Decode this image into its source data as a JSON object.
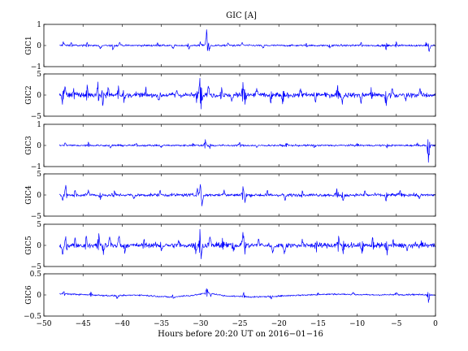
{
  "chart_data": {
    "type": "line",
    "title": "GIC [A]",
    "xlabel": "Hours before  20:20 UT on 2016−01−16",
    "xlim": [
      -50,
      0
    ],
    "x_ticks": [
      -50,
      -45,
      -40,
      -35,
      -30,
      -25,
      -20,
      -15,
      -10,
      -5,
      0
    ],
    "x_tick_labels": [
      "−50",
      "−45",
      "−40",
      "−35",
      "−30",
      "−25",
      "−20",
      "−15",
      "−10",
      "−5",
      "0"
    ],
    "data_x_range": [
      -48,
      0
    ],
    "grid": false,
    "color": "#0000ff",
    "panels": [
      {
        "ylabel": "GIC1",
        "ylim": [
          -1,
          1
        ],
        "y_ticks": [
          -1,
          0,
          1
        ],
        "y_tick_labels": [
          "−1",
          "0",
          "1"
        ],
        "baseline": 0,
        "noise": 0.03,
        "bursts": [
          {
            "x": -47.5,
            "y": 0.18
          },
          {
            "x": -46.5,
            "y": 0.14
          },
          {
            "x": -44.5,
            "y": 0.15
          },
          {
            "x": -42.8,
            "y": -0.15
          },
          {
            "x": -41.2,
            "y": -0.2
          },
          {
            "x": -40.3,
            "y": 0.15
          },
          {
            "x": -35.5,
            "y": 0.12
          },
          {
            "x": -33.5,
            "y": -0.15
          },
          {
            "x": -31.5,
            "y": -0.15
          },
          {
            "x": -30.0,
            "y": 0.18
          },
          {
            "x": -29.2,
            "y": 0.75
          },
          {
            "x": -28.9,
            "y": -0.25
          },
          {
            "x": -26.5,
            "y": 0.12
          },
          {
            "x": -24.7,
            "y": 0.14
          },
          {
            "x": -22.0,
            "y": -0.12
          },
          {
            "x": -16.5,
            "y": 0.1
          },
          {
            "x": -13.5,
            "y": -0.12
          },
          {
            "x": -9.5,
            "y": 0.15
          },
          {
            "x": -6.3,
            "y": -0.2
          },
          {
            "x": -5.0,
            "y": 0.18
          },
          {
            "x": -1.2,
            "y": 0.15
          },
          {
            "x": -0.8,
            "y": -0.28
          }
        ]
      },
      {
        "ylabel": "GIC2",
        "ylim": [
          -5,
          5
        ],
        "y_ticks": [
          -5,
          0,
          5
        ],
        "y_tick_labels": [
          "−5",
          "0",
          "5"
        ],
        "baseline": 0,
        "noise": 0.4,
        "bursts": [
          {
            "x": -47.6,
            "y": -2.2
          },
          {
            "x": -47.3,
            "y": 2.0
          },
          {
            "x": -46.2,
            "y": 1.6
          },
          {
            "x": -44.5,
            "y": 2.4
          },
          {
            "x": -43.1,
            "y": 3.1
          },
          {
            "x": -42.5,
            "y": -2.5
          },
          {
            "x": -41.8,
            "y": 1.8
          },
          {
            "x": -40.5,
            "y": 2.2
          },
          {
            "x": -39.8,
            "y": -1.8
          },
          {
            "x": -37.0,
            "y": 1.2
          },
          {
            "x": -35.3,
            "y": -1.2
          },
          {
            "x": -33.0,
            "y": 1.1
          },
          {
            "x": -30.5,
            "y": -1.8
          },
          {
            "x": -30.1,
            "y": 4.0
          },
          {
            "x": -29.9,
            "y": -3.3
          },
          {
            "x": -29.0,
            "y": 2.1
          },
          {
            "x": -27.3,
            "y": 1.8
          },
          {
            "x": -26.0,
            "y": -1.5
          },
          {
            "x": -24.6,
            "y": 3.0
          },
          {
            "x": -24.3,
            "y": -2.2
          },
          {
            "x": -22.8,
            "y": 1.6
          },
          {
            "x": -21.0,
            "y": -1.9
          },
          {
            "x": -19.5,
            "y": -2.1
          },
          {
            "x": -17.2,
            "y": 1.5
          },
          {
            "x": -15.3,
            "y": -1.7
          },
          {
            "x": -12.5,
            "y": 2.3
          },
          {
            "x": -11.9,
            "y": -2.2
          },
          {
            "x": -9.5,
            "y": -2.0
          },
          {
            "x": -8.2,
            "y": 1.8
          },
          {
            "x": -6.3,
            "y": -2.5
          },
          {
            "x": -5.5,
            "y": 1.5
          },
          {
            "x": -3.8,
            "y": -1.4
          },
          {
            "x": -2.0,
            "y": 1.2
          }
        ]
      },
      {
        "ylabel": "GIC3",
        "ylim": [
          -1,
          1
        ],
        "y_ticks": [
          -1,
          0,
          1
        ],
        "y_tick_labels": [
          "−1",
          "0",
          "1"
        ],
        "baseline": 0,
        "noise": 0.03,
        "bursts": [
          {
            "x": -47.3,
            "y": 0.12
          },
          {
            "x": -44.3,
            "y": 0.16
          },
          {
            "x": -41.5,
            "y": -0.12
          },
          {
            "x": -38.2,
            "y": 0.1
          },
          {
            "x": -35.0,
            "y": -0.1
          },
          {
            "x": -31.0,
            "y": 0.1
          },
          {
            "x": -29.4,
            "y": 0.28
          },
          {
            "x": -28.8,
            "y": -0.15
          },
          {
            "x": -25.0,
            "y": 0.14
          },
          {
            "x": -22.8,
            "y": -0.1
          },
          {
            "x": -19.0,
            "y": 0.1
          },
          {
            "x": -15.5,
            "y": -0.1
          },
          {
            "x": -10.0,
            "y": 0.1
          },
          {
            "x": -6.2,
            "y": -0.12
          },
          {
            "x": -2.3,
            "y": 0.12
          },
          {
            "x": -0.9,
            "y": -0.8
          }
        ]
      },
      {
        "ylabel": "GIC4",
        "ylim": [
          -5,
          5
        ],
        "y_ticks": [
          -5,
          0,
          5
        ],
        "y_tick_labels": [
          "−5",
          "0",
          "5"
        ],
        "baseline": 0,
        "noise": 0.25,
        "bursts": [
          {
            "x": -47.6,
            "y": -1.2
          },
          {
            "x": -47.2,
            "y": 2.3
          },
          {
            "x": -46.0,
            "y": 1.1
          },
          {
            "x": -44.3,
            "y": 1.2
          },
          {
            "x": -42.8,
            "y": -1.1
          },
          {
            "x": -41.0,
            "y": 1.0
          },
          {
            "x": -38.5,
            "y": -0.9
          },
          {
            "x": -35.2,
            "y": 0.9
          },
          {
            "x": -30.4,
            "y": 1.6
          },
          {
            "x": -30.0,
            "y": 2.5
          },
          {
            "x": -29.8,
            "y": -2.6
          },
          {
            "x": -27.0,
            "y": 1.2
          },
          {
            "x": -24.6,
            "y": 2.0
          },
          {
            "x": -24.3,
            "y": -1.8
          },
          {
            "x": -21.5,
            "y": 1.0
          },
          {
            "x": -19.2,
            "y": -1.3
          },
          {
            "x": -17.0,
            "y": 1.0
          },
          {
            "x": -12.6,
            "y": 1.5
          },
          {
            "x": -11.8,
            "y": -1.3
          },
          {
            "x": -9.0,
            "y": 1.0
          },
          {
            "x": -6.3,
            "y": -1.4
          },
          {
            "x": -4.5,
            "y": 1.0
          },
          {
            "x": -2.0,
            "y": -0.8
          }
        ]
      },
      {
        "ylabel": "GIC5",
        "ylim": [
          -5,
          5
        ],
        "y_ticks": [
          -5,
          0,
          5
        ],
        "y_tick_labels": [
          "−5",
          "0",
          "5"
        ],
        "baseline": 0,
        "noise": 0.4,
        "bursts": [
          {
            "x": -47.6,
            "y": -2.1
          },
          {
            "x": -47.2,
            "y": 2.1
          },
          {
            "x": -46.0,
            "y": 1.8
          },
          {
            "x": -44.6,
            "y": 2.2
          },
          {
            "x": -43.0,
            "y": 2.8
          },
          {
            "x": -42.4,
            "y": -2.2
          },
          {
            "x": -41.6,
            "y": 2.0
          },
          {
            "x": -40.4,
            "y": 2.2
          },
          {
            "x": -39.7,
            "y": -1.9
          },
          {
            "x": -37.2,
            "y": 1.3
          },
          {
            "x": -35.0,
            "y": -1.3
          },
          {
            "x": -32.8,
            "y": 1.2
          },
          {
            "x": -30.6,
            "y": -2.0
          },
          {
            "x": -30.1,
            "y": 3.8
          },
          {
            "x": -29.9,
            "y": -3.2
          },
          {
            "x": -28.8,
            "y": 2.0
          },
          {
            "x": -27.2,
            "y": 1.7
          },
          {
            "x": -25.8,
            "y": -1.4
          },
          {
            "x": -24.6,
            "y": 3.1
          },
          {
            "x": -24.3,
            "y": -2.1
          },
          {
            "x": -22.6,
            "y": 1.5
          },
          {
            "x": -20.8,
            "y": -1.8
          },
          {
            "x": -19.3,
            "y": -2.0
          },
          {
            "x": -17.0,
            "y": 1.5
          },
          {
            "x": -15.2,
            "y": -1.6
          },
          {
            "x": -12.4,
            "y": 2.2
          },
          {
            "x": -11.8,
            "y": -2.0
          },
          {
            "x": -9.4,
            "y": -1.9
          },
          {
            "x": -8.0,
            "y": 1.7
          },
          {
            "x": -6.2,
            "y": -2.3
          },
          {
            "x": -5.4,
            "y": 1.4
          },
          {
            "x": -3.6,
            "y": -1.3
          },
          {
            "x": -1.8,
            "y": 1.1
          }
        ]
      },
      {
        "ylabel": "GIC6",
        "ylim": [
          -0.5,
          0.5
        ],
        "y_ticks": [
          -0.5,
          0,
          0.5
        ],
        "y_tick_labels": [
          "−0.5",
          "0",
          "0.5"
        ],
        "baseline": 0,
        "noise": 0.012,
        "drift": [
          {
            "x": -48,
            "y": 0.03
          },
          {
            "x": -44,
            "y": 0.0
          },
          {
            "x": -41,
            "y": -0.02
          },
          {
            "x": -38,
            "y": 0.0
          },
          {
            "x": -34,
            "y": -0.05
          },
          {
            "x": -31,
            "y": -0.01
          },
          {
            "x": -29,
            "y": 0.05
          },
          {
            "x": -27,
            "y": -0.02
          },
          {
            "x": -23,
            "y": -0.05
          },
          {
            "x": -18,
            "y": -0.01
          },
          {
            "x": -13,
            "y": 0.02
          },
          {
            "x": -8,
            "y": 0.0
          },
          {
            "x": -3,
            "y": 0.01
          },
          {
            "x": 0,
            "y": 0.0
          }
        ],
        "bursts": [
          {
            "x": -47.4,
            "y": 0.08
          },
          {
            "x": -44.0,
            "y": 0.07
          },
          {
            "x": -40.6,
            "y": -0.08
          },
          {
            "x": -33.5,
            "y": -0.08
          },
          {
            "x": -29.2,
            "y": 0.15
          },
          {
            "x": -28.7,
            "y": -0.04
          },
          {
            "x": -24.5,
            "y": 0.06
          },
          {
            "x": -21.0,
            "y": -0.07
          },
          {
            "x": -15.0,
            "y": 0.05
          },
          {
            "x": -10.5,
            "y": 0.06
          },
          {
            "x": -5.0,
            "y": 0.05
          },
          {
            "x": -0.9,
            "y": -0.18
          }
        ]
      }
    ]
  }
}
